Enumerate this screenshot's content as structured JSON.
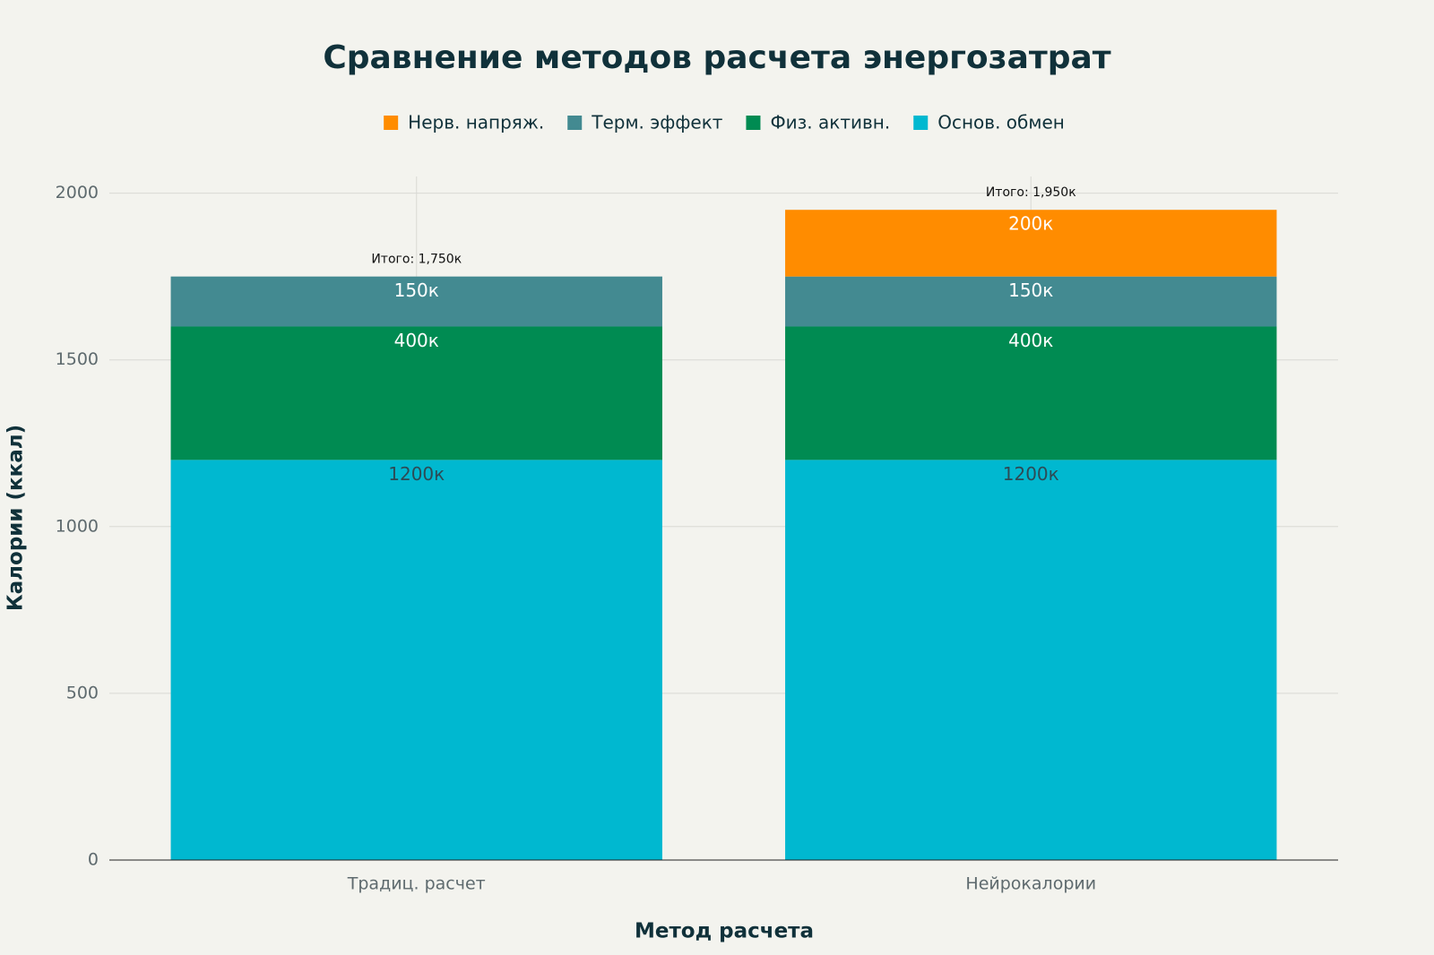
{
  "chart_data": {
    "type": "stacked_bar",
    "title": "Сравнение методов расчета энергозатрат",
    "x_label": "Метод расчета",
    "y_label": "Калории (ккал)",
    "categories": [
      "Традиц. расчет",
      "Нейрокалории"
    ],
    "series": [
      {
        "name": "Основ. обмен",
        "color": "#00b8d0",
        "values": [
          1200,
          1200
        ],
        "value_labels": [
          "1200к",
          "1200к"
        ]
      },
      {
        "name": "Физ. активн.",
        "color": "#008b52",
        "values": [
          400,
          400
        ],
        "value_labels": [
          "400к",
          "400к"
        ]
      },
      {
        "name": "Терм. эффект",
        "color": "#438a91",
        "values": [
          150,
          150
        ],
        "value_labels": [
          "150к",
          "150к"
        ]
      },
      {
        "name": "Нерв. напряж.",
        "color": "#ff8c00",
        "values": [
          null,
          200
        ],
        "value_labels": [
          null,
          "200к"
        ]
      }
    ],
    "totals": [
      1750,
      1950
    ],
    "total_labels": [
      "Итого: 1,750к",
      "Итого: 1,950к"
    ],
    "ylim": [
      0,
      2050
    ],
    "yticks": [
      0,
      500,
      1000,
      1500,
      2000
    ],
    "grid": true,
    "legend": "top"
  }
}
